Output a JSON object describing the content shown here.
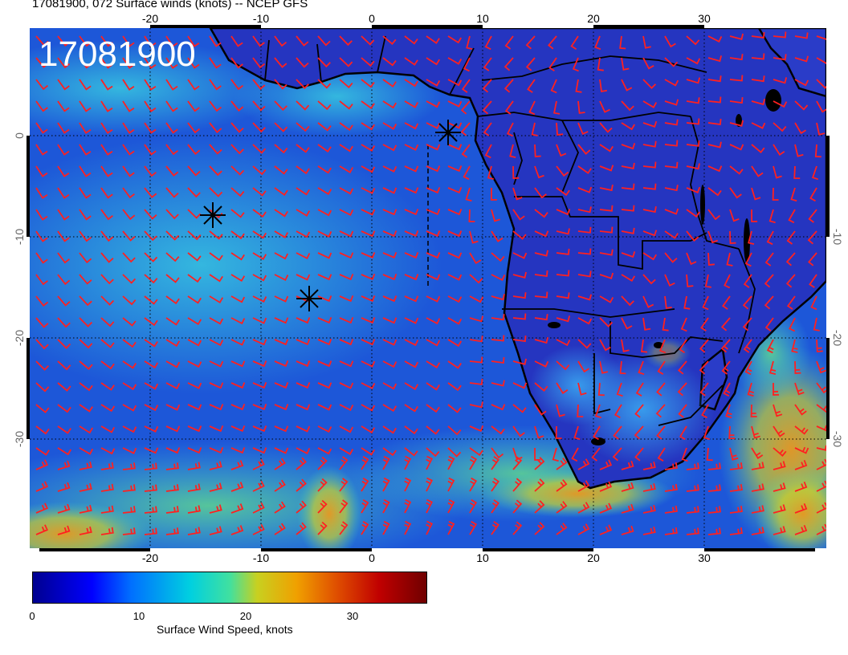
{
  "header": {
    "title": "17081900, 072 Surface winds (knots) -- NCEP GFS"
  },
  "map": {
    "stamp": "17081900",
    "longitude_labels_top": [
      "-20",
      "-10",
      "0",
      "10",
      "20",
      "30"
    ],
    "longitude_labels_bottom": [
      "-20",
      "-10",
      "0",
      "10",
      "20",
      "30"
    ],
    "latitude_labels_left": [
      "0",
      "-10",
      "-20",
      "-30"
    ],
    "latitude_labels_right": [
      "-10",
      "-20",
      "-30"
    ],
    "colors": {
      "ocean": "#1a4fd8",
      "land": "#2233bb",
      "barb": "#ff2020",
      "coast": "#000000"
    },
    "markers": [
      "asterisk",
      "asterisk",
      "asterisk"
    ]
  },
  "colorbar": {
    "ticks": [
      "0",
      "10",
      "20",
      "30"
    ],
    "label": "Surface Wind Speed, knots",
    "range": [
      0,
      37
    ]
  }
}
